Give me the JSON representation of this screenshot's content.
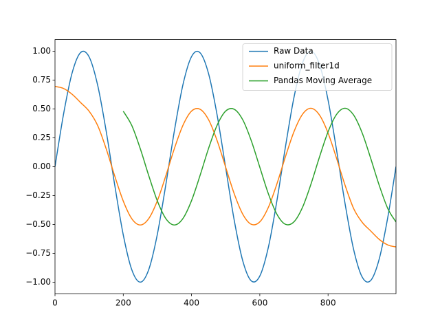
{
  "chart_data": {
    "type": "line",
    "x": [
      0,
      25,
      50,
      75,
      100,
      125,
      150,
      175,
      200,
      225,
      250,
      275,
      300,
      325,
      350,
      375,
      400,
      425,
      450,
      475,
      500,
      525,
      550,
      575,
      600,
      625,
      650,
      675,
      700,
      725,
      750,
      775,
      800,
      825,
      850,
      875,
      900,
      925,
      950,
      975,
      999
    ],
    "series": [
      {
        "name": "Raw Data",
        "color": "#1f77b4",
        "values": [
          0,
          0.454,
          0.81,
          0.988,
          0.95,
          0.705,
          0.306,
          -0.16,
          -0.591,
          -0.893,
          -1.0,
          -0.888,
          -0.583,
          -0.15,
          0.315,
          0.712,
          0.953,
          0.986,
          0.804,
          0.446,
          -0.009,
          -0.463,
          -0.815,
          -0.989,
          -0.947,
          -0.699,
          -0.297,
          0.169,
          0.598,
          0.897,
          1.0,
          0.884,
          0.576,
          0.141,
          -0.324,
          -0.719,
          -0.956,
          -0.985,
          -0.798,
          -0.438,
          0
        ]
      },
      {
        "name": "uniform_filter1d",
        "color": "#ff7f0e",
        "values": [
          0.695,
          0.677,
          0.627,
          0.555,
          0.48,
          0.356,
          0.154,
          -0.081,
          -0.298,
          -0.451,
          -0.505,
          -0.448,
          -0.294,
          -0.076,
          0.159,
          0.359,
          0.481,
          0.497,
          0.406,
          0.225,
          -0.005,
          -0.234,
          -0.411,
          -0.499,
          -0.478,
          -0.353,
          -0.15,
          0.085,
          0.302,
          0.453,
          0.505,
          0.446,
          0.291,
          0.071,
          -0.163,
          -0.363,
          -0.482,
          -0.557,
          -0.63,
          -0.678,
          -0.695
        ]
      },
      {
        "name": "Pandas Moving Average",
        "color": "#2ca02c",
        "values": [
          null,
          null,
          null,
          null,
          null,
          null,
          null,
          null,
          0.48,
          0.356,
          0.154,
          -0.081,
          -0.298,
          -0.451,
          -0.505,
          -0.448,
          -0.294,
          -0.076,
          0.159,
          0.359,
          0.481,
          0.497,
          0.406,
          0.225,
          -0.005,
          -0.234,
          -0.411,
          -0.499,
          -0.478,
          -0.353,
          -0.15,
          0.085,
          0.302,
          0.453,
          0.505,
          0.446,
          0.291,
          0.071,
          -0.163,
          -0.363,
          -0.479
        ]
      }
    ],
    "xlim": [
      0,
      999
    ],
    "xticks": [
      0,
      200,
      400,
      600,
      800
    ],
    "ylim": [
      -1.1,
      1.1
    ],
    "yticks": [
      {
        "value": -1,
        "label": "−1.00"
      },
      {
        "value": -0.75,
        "label": "−0.75"
      },
      {
        "value": -0.5,
        "label": "−0.50"
      },
      {
        "value": -0.25,
        "label": "−0.25"
      },
      {
        "value": 0,
        "label": "0.00"
      },
      {
        "value": 0.25,
        "label": "0.25"
      },
      {
        "value": 0.5,
        "label": "0.50"
      },
      {
        "value": 0.75,
        "label": "0.75"
      },
      {
        "value": 1,
        "label": "1.00"
      }
    ],
    "legend": "upper right"
  }
}
